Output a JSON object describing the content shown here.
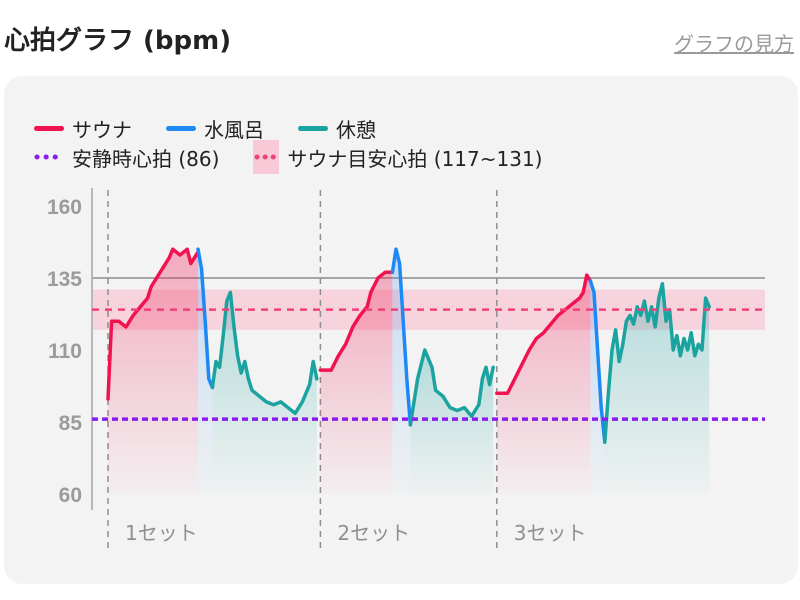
{
  "header": {
    "title": "心拍グラフ (bpm)",
    "help_link": "グラフの見方"
  },
  "legend": {
    "sauna": "サウナ",
    "bath": "水風呂",
    "rest": "休憩",
    "resting": "安静時心拍 (86)",
    "target": "サウナ目安心拍 (117~131)"
  },
  "colors": {
    "sauna": "#f0134f",
    "bath": "#1e88f5",
    "rest": "#1ba3a0",
    "resting": "#8a1cf0",
    "target": "#f0407a",
    "target_band": "#f8c9d6"
  },
  "chart_data": {
    "type": "line",
    "ylabel": "",
    "yticks": [
      60,
      85,
      110,
      135,
      160
    ],
    "ylim": [
      60,
      160
    ],
    "resting_hr": 86,
    "target_zone": [
      117,
      131
    ],
    "target_line": 124,
    "reference_line": 135,
    "sets": [
      {
        "label": "1セット",
        "sauna": [
          [
            0,
            93
          ],
          [
            1,
            120
          ],
          [
            3,
            120
          ],
          [
            5,
            118
          ],
          [
            7,
            122
          ],
          [
            9,
            125
          ],
          [
            11,
            128
          ],
          [
            12,
            132
          ],
          [
            13,
            134
          ],
          [
            15,
            138
          ],
          [
            17,
            142
          ],
          [
            18,
            145
          ],
          [
            20,
            143
          ],
          [
            22,
            145
          ],
          [
            23,
            140
          ],
          [
            25,
            144
          ]
        ],
        "bath": [
          [
            25,
            145
          ],
          [
            26,
            138
          ],
          [
            27,
            120
          ],
          [
            28,
            100
          ],
          [
            29,
            97
          ]
        ],
        "rest": [
          [
            29,
            97
          ],
          [
            30,
            106
          ],
          [
            31,
            104
          ],
          [
            32,
            115
          ],
          [
            33,
            127
          ],
          [
            34,
            130
          ],
          [
            35,
            118
          ],
          [
            36,
            108
          ],
          [
            37,
            102
          ],
          [
            38,
            106
          ],
          [
            39,
            100
          ],
          [
            40,
            96
          ],
          [
            42,
            94
          ],
          [
            44,
            92
          ],
          [
            46,
            91
          ],
          [
            48,
            92
          ],
          [
            50,
            90
          ],
          [
            52,
            88
          ],
          [
            54,
            92
          ],
          [
            56,
            98
          ],
          [
            57,
            106
          ],
          [
            58,
            100
          ]
        ]
      },
      {
        "label": "2セット",
        "sauna": [
          [
            59,
            103
          ],
          [
            62,
            103
          ],
          [
            64,
            108
          ],
          [
            66,
            112
          ],
          [
            68,
            118
          ],
          [
            70,
            122
          ],
          [
            72,
            125
          ],
          [
            73,
            130
          ],
          [
            75,
            135
          ],
          [
            77,
            137
          ],
          [
            79,
            137
          ]
        ],
        "bath": [
          [
            79,
            137
          ],
          [
            80,
            145
          ],
          [
            81,
            140
          ],
          [
            82,
            120
          ],
          [
            83,
            100
          ],
          [
            84,
            84
          ]
        ],
        "rest": [
          [
            84,
            84
          ],
          [
            85,
            92
          ],
          [
            86,
            100
          ],
          [
            88,
            110
          ],
          [
            90,
            104
          ],
          [
            91,
            96
          ],
          [
            93,
            94
          ],
          [
            95,
            90
          ],
          [
            97,
            89
          ],
          [
            99,
            90
          ],
          [
            101,
            87
          ],
          [
            103,
            91
          ],
          [
            104,
            100
          ],
          [
            105,
            104
          ],
          [
            106,
            98
          ],
          [
            107,
            104
          ]
        ]
      },
      {
        "label": "3セット",
        "sauna": [
          [
            108,
            95
          ],
          [
            111,
            95
          ],
          [
            113,
            100
          ],
          [
            115,
            105
          ],
          [
            117,
            110
          ],
          [
            119,
            114
          ],
          [
            121,
            116
          ],
          [
            123,
            119
          ],
          [
            125,
            122
          ],
          [
            127,
            124
          ],
          [
            129,
            126
          ],
          [
            131,
            128
          ],
          [
            132,
            130
          ],
          [
            133,
            136
          ],
          [
            134,
            134
          ]
        ],
        "bath": [
          [
            134,
            134
          ],
          [
            135,
            130
          ],
          [
            136,
            110
          ],
          [
            137,
            90
          ],
          [
            138,
            78
          ]
        ],
        "rest": [
          [
            138,
            78
          ],
          [
            139,
            95
          ],
          [
            140,
            110
          ],
          [
            141,
            117
          ],
          [
            142,
            106
          ],
          [
            143,
            112
          ],
          [
            144,
            120
          ],
          [
            145,
            122
          ],
          [
            146,
            119
          ],
          [
            147,
            125
          ],
          [
            148,
            122
          ],
          [
            149,
            127
          ],
          [
            150,
            120
          ],
          [
            151,
            125
          ],
          [
            152,
            118
          ],
          [
            153,
            128
          ],
          [
            154,
            133
          ],
          [
            155,
            120
          ],
          [
            156,
            124
          ],
          [
            157,
            110
          ],
          [
            158,
            115
          ],
          [
            159,
            108
          ],
          [
            160,
            114
          ],
          [
            161,
            110
          ],
          [
            162,
            116
          ],
          [
            163,
            108
          ],
          [
            164,
            112
          ],
          [
            165,
            110
          ],
          [
            166,
            128
          ],
          [
            167,
            125
          ]
        ]
      }
    ]
  }
}
